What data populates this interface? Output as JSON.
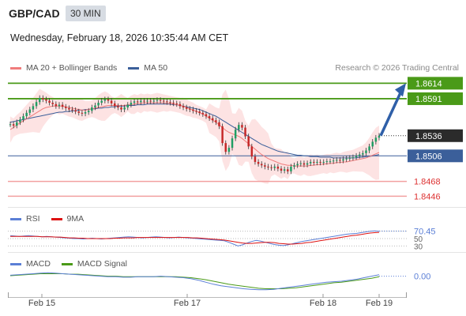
{
  "header": {
    "symbol": "GBP/CAD",
    "timeframe": "30 MIN",
    "datetime": "Wednesday, February 18, 2026 10:35:44 AM CET"
  },
  "legend_main": [
    {
      "label": "MA 20 + Bollinger Bands",
      "color": "#f07c7c"
    },
    {
      "label": "MA 50",
      "color": "#3b5f9a"
    }
  ],
  "credit": "Research © 2026 Trading Central",
  "legend_rsi": [
    {
      "label": "RSI",
      "color": "#5b7fd6"
    },
    {
      "label": "9MA",
      "color": "#d11"
    }
  ],
  "legend_macd": [
    {
      "label": "MACD",
      "color": "#5b7fd6"
    },
    {
      "label": "MACD Signal",
      "color": "#4a9a18"
    }
  ],
  "colors": {
    "resistance": "#4a9a18",
    "support": "#3b5f9a",
    "target_lines": "#f2a0a0",
    "arrow": "#2f5fa8",
    "bollinger": "#fde0e0"
  },
  "chart_data": [
    {
      "type": "candlestick",
      "x_ticks": [
        "Feb 15",
        "Feb 17",
        "Feb 18",
        "Feb 19"
      ],
      "ylim": [
        1.843,
        1.8625
      ],
      "current_price": 1.8536,
      "levels": [
        {
          "value": 1.8614,
          "label": "1.8614",
          "kind": "resistance"
        },
        {
          "value": 1.8591,
          "label": "1.8591",
          "kind": "resistance"
        },
        {
          "value": 1.8506,
          "label": "1.8506",
          "kind": "pivot"
        },
        {
          "value": 1.8468,
          "label": "1.8468",
          "kind": "support"
        },
        {
          "value": 1.8446,
          "label": "1.8446",
          "kind": "support"
        }
      ],
      "closes": [
        1.8553,
        1.8551,
        1.8556,
        1.856,
        1.8565,
        1.857,
        1.8575,
        1.858,
        1.8586,
        1.8592,
        1.859,
        1.8588,
        1.8585,
        1.8583,
        1.858,
        1.8582,
        1.8579,
        1.8577,
        1.8575,
        1.8574,
        1.8572,
        1.857,
        1.8569,
        1.8571,
        1.8573,
        1.8578,
        1.8581,
        1.8585,
        1.8588,
        1.859,
        1.8588,
        1.8584,
        1.858,
        1.8578,
        1.8575,
        1.8578,
        1.8582,
        1.8585,
        1.8587,
        1.8586,
        1.8588,
        1.8587,
        1.8588,
        1.8587,
        1.8588,
        1.8589,
        1.8588,
        1.8587,
        1.8586,
        1.8585,
        1.8584,
        1.8583,
        1.858,
        1.8578,
        1.8576,
        1.8575,
        1.8573,
        1.8572,
        1.857,
        1.8568,
        1.8565,
        1.8562,
        1.8559,
        1.8556,
        1.855,
        1.8525,
        1.8512,
        1.8518,
        1.8532,
        1.8545,
        1.8552,
        1.8548,
        1.8535,
        1.852,
        1.8505,
        1.8497,
        1.8494,
        1.8492,
        1.849,
        1.8489,
        1.8488,
        1.849,
        1.8487,
        1.8484,
        1.8486,
        1.8483,
        1.849,
        1.8492,
        1.8494,
        1.8495,
        1.8493,
        1.8495,
        1.8497,
        1.8496,
        1.8497,
        1.8496,
        1.8497,
        1.8498,
        1.8498,
        1.8499,
        1.85,
        1.8499,
        1.8501,
        1.8502,
        1.8503,
        1.8504,
        1.8506,
        1.8508,
        1.851,
        1.8514,
        1.852,
        1.8527,
        1.8533,
        1.8536
      ],
      "ma20": [
        1.8545,
        1.8548,
        1.8552,
        1.8555,
        1.8558,
        1.8561,
        1.8564,
        1.8567,
        1.857,
        1.8573,
        1.8576,
        1.8578,
        1.8579,
        1.858,
        1.858,
        1.858,
        1.858,
        1.8579,
        1.8578,
        1.8577,
        1.8576,
        1.8575,
        1.8574,
        1.8574,
        1.8575,
        1.8576,
        1.8577,
        1.8578,
        1.8579,
        1.858,
        1.8581,
        1.8581,
        1.8581,
        1.8581,
        1.8581,
        1.8581,
        1.8582,
        1.8582,
        1.8583,
        1.8584,
        1.8584,
        1.8585,
        1.8585,
        1.8585,
        1.8585,
        1.8585,
        1.8585,
        1.8585,
        1.8584,
        1.8584,
        1.8583,
        1.8582,
        1.8581,
        1.858,
        1.8578,
        1.8576,
        1.8574,
        1.8572,
        1.857,
        1.8568,
        1.8565,
        1.8562,
        1.8559,
        1.8556,
        1.8552,
        1.8548,
        1.8544,
        1.8541,
        1.8539,
        1.8537,
        1.8535,
        1.8532,
        1.8528,
        1.8524,
        1.852,
        1.8516,
        1.8512,
        1.8508,
        1.8505,
        1.8502,
        1.85,
        1.8498,
        1.8496,
        1.8494,
        1.8493,
        1.8492,
        1.8492,
        1.8491,
        1.8491,
        1.8491,
        1.8491,
        1.8491,
        1.8492,
        1.8492,
        1.8493,
        1.8493,
        1.8494,
        1.8494,
        1.8495,
        1.8495,
        1.8496,
        1.8496,
        1.8497,
        1.8497,
        1.8498,
        1.8499,
        1.85,
        1.8501,
        1.8502,
        1.8503,
        1.8505,
        1.8507,
        1.8509,
        1.8511
      ],
      "ma50": [
        1.8556,
        1.8557,
        1.8558,
        1.8559,
        1.856,
        1.8561,
        1.8562,
        1.8563,
        1.8564,
        1.8565,
        1.8566,
        1.8567,
        1.8568,
        1.8569,
        1.857,
        1.8571,
        1.8571,
        1.8572,
        1.8572,
        1.8573,
        1.8573,
        1.8574,
        1.8574,
        1.8575,
        1.8575,
        1.8576,
        1.8576,
        1.8577,
        1.8577,
        1.8578,
        1.8578,
        1.8579,
        1.8579,
        1.858,
        1.858,
        1.858,
        1.8581,
        1.8581,
        1.8581,
        1.8582,
        1.8582,
        1.8582,
        1.8583,
        1.8583,
        1.8583,
        1.8583,
        1.8583,
        1.8583,
        1.8583,
        1.8583,
        1.8582,
        1.8582,
        1.8581,
        1.858,
        1.8579,
        1.8578,
        1.8577,
        1.8576,
        1.8575,
        1.8573,
        1.8571,
        1.8569,
        1.8567,
        1.8565,
        1.8562,
        1.8559,
        1.8556,
        1.8553,
        1.855,
        1.8547,
        1.8544,
        1.8541,
        1.8538,
        1.8535,
        1.8532,
        1.8529,
        1.8526,
        1.8523,
        1.8521,
        1.8519,
        1.8517,
        1.8515,
        1.8513,
        1.8512,
        1.8511,
        1.851,
        1.8509,
        1.8508,
        1.8507,
        1.8507,
        1.8506,
        1.8506,
        1.8505,
        1.8505,
        1.8505,
        1.8504,
        1.8504,
        1.8504,
        1.8504,
        1.8503,
        1.8503,
        1.8503,
        1.8503,
        1.8503,
        1.8503,
        1.8503,
        1.8503,
        1.8504,
        1.8504,
        1.8505,
        1.8505,
        1.8506,
        1.8507,
        1.8508
      ],
      "target_arrow": {
        "from": 1.8536,
        "to": 1.8614
      }
    },
    {
      "type": "line",
      "indicator": "RSI",
      "ylim": [
        20,
        80
      ],
      "last_value": "70.45",
      "hidden_ticks": [
        "50",
        "30"
      ],
      "rsi": [
        58,
        57,
        56,
        57,
        58,
        57,
        56,
        55,
        56,
        55,
        54,
        53,
        52,
        51,
        50,
        50,
        49,
        50,
        51,
        50,
        49,
        50,
        51,
        52,
        53,
        54,
        55,
        54,
        53,
        52,
        53,
        54,
        55,
        54,
        53,
        52,
        53,
        54,
        53,
        52,
        51,
        50,
        49,
        48,
        47,
        46,
        45,
        44,
        40,
        35,
        30,
        33,
        38,
        42,
        45,
        43,
        40,
        37,
        34,
        32,
        31,
        33,
        36,
        39,
        42,
        44,
        46,
        48,
        50,
        52,
        54,
        56,
        58,
        60,
        62,
        63,
        64,
        66,
        68,
        70,
        71,
        70
      ],
      "ma9": [
        56,
        56,
        56,
        56,
        56,
        56,
        56,
        55,
        55,
        55,
        54,
        54,
        53,
        52,
        52,
        51,
        51,
        50,
        50,
        50,
        50,
        50,
        50,
        51,
        51,
        52,
        52,
        52,
        53,
        53,
        53,
        53,
        53,
        53,
        53,
        53,
        53,
        53,
        53,
        53,
        52,
        52,
        51,
        50,
        49,
        48,
        47,
        46,
        44,
        42,
        40,
        38,
        37,
        37,
        38,
        39,
        40,
        40,
        39,
        37,
        36,
        35,
        35,
        36,
        37,
        39,
        40,
        42,
        44,
        46,
        48,
        50,
        52,
        54,
        56,
        58,
        59,
        61,
        63,
        65,
        66,
        67
      ]
    },
    {
      "type": "line",
      "indicator": "MACD",
      "ylim": [
        -0.0032,
        0.0012
      ],
      "last_value": "0.00",
      "macd": [
        0.0002,
        0.0003,
        0.0004,
        0.0005,
        0.0006,
        0.0007,
        0.0006,
        0.0005,
        0.0004,
        0.0003,
        0.0002,
        0.0001,
        0.0,
        -0.0001,
        -0.0001,
        -0.0002,
        -0.0002,
        -0.0001,
        -0.0001,
        -0.0001,
        0.0,
        -0.0001,
        -0.0002,
        -0.0003,
        -0.0005,
        -0.0008,
        -0.0012,
        -0.0016,
        -0.0019,
        -0.0021,
        -0.0023,
        -0.0025,
        -0.0026,
        -0.0027,
        -0.0027,
        -0.0026,
        -0.0024,
        -0.0022,
        -0.002,
        -0.0018,
        -0.0016,
        -0.0014,
        -0.0012,
        -0.0011,
        -0.001,
        -0.0008,
        -0.0006,
        -0.0003,
        0.0,
        0.0003
      ],
      "signal": [
        0.0001,
        0.0002,
        0.0003,
        0.0004,
        0.0005,
        0.0005,
        0.0005,
        0.0005,
        0.0004,
        0.0004,
        0.0003,
        0.0002,
        0.0001,
        0.0,
        0.0,
        -0.0001,
        -0.0001,
        -0.0001,
        -0.0001,
        -0.0001,
        -0.0001,
        -0.0001,
        -0.0001,
        -0.0002,
        -0.0003,
        -0.0005,
        -0.0007,
        -0.001,
        -0.0013,
        -0.0016,
        -0.0018,
        -0.002,
        -0.0022,
        -0.0024,
        -0.0025,
        -0.0025,
        -0.0025,
        -0.0024,
        -0.0023,
        -0.0021,
        -0.0019,
        -0.0017,
        -0.0015,
        -0.0013,
        -0.0012,
        -0.001,
        -0.0008,
        -0.0006,
        -0.0004,
        -0.0001
      ]
    }
  ]
}
